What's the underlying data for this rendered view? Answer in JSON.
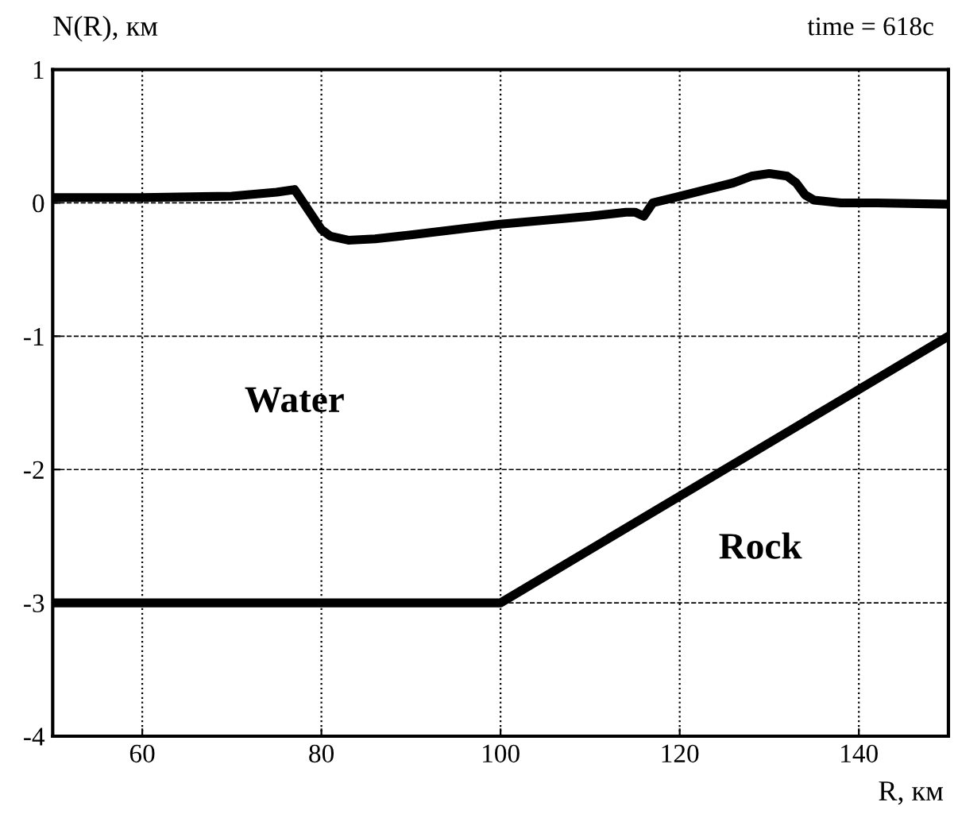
{
  "chart_data": {
    "type": "line",
    "xlabel": "R, км",
    "ylabel": "N(R), км",
    "annotations": [
      "time = 618c",
      "Water",
      "Rock"
    ],
    "series": [
      {
        "color": "#000000",
        "x": [
          50,
          60,
          70,
          75,
          77,
          78,
          80,
          81,
          83,
          86,
          90,
          95,
          100,
          105,
          110,
          114,
          115,
          116,
          117,
          120,
          123,
          126,
          128,
          130,
          132,
          133,
          134,
          135,
          138,
          142,
          150
        ],
        "values": [
          0.04,
          0.04,
          0.05,
          0.08,
          0.1,
          0.0,
          -0.2,
          -0.25,
          -0.28,
          -0.27,
          -0.24,
          -0.2,
          -0.16,
          -0.13,
          -0.1,
          -0.07,
          -0.07,
          -0.1,
          0.0,
          0.05,
          0.1,
          0.15,
          0.2,
          0.22,
          0.2,
          0.15,
          0.06,
          0.02,
          0.0,
          0.0,
          -0.01
        ]
      },
      {
        "color": "#000000",
        "x": [
          50,
          100,
          150
        ],
        "values": [
          -3,
          -3,
          -1
        ]
      }
    ],
    "xlim": [
      50,
      150
    ],
    "ylim": [
      -4,
      1
    ],
    "xticks": [
      60,
      80,
      100,
      120,
      140
    ],
    "yticks": [
      -4,
      -3,
      -2,
      -1,
      0,
      1
    ],
    "grid": true,
    "line_style": "solid",
    "marker": "none"
  }
}
